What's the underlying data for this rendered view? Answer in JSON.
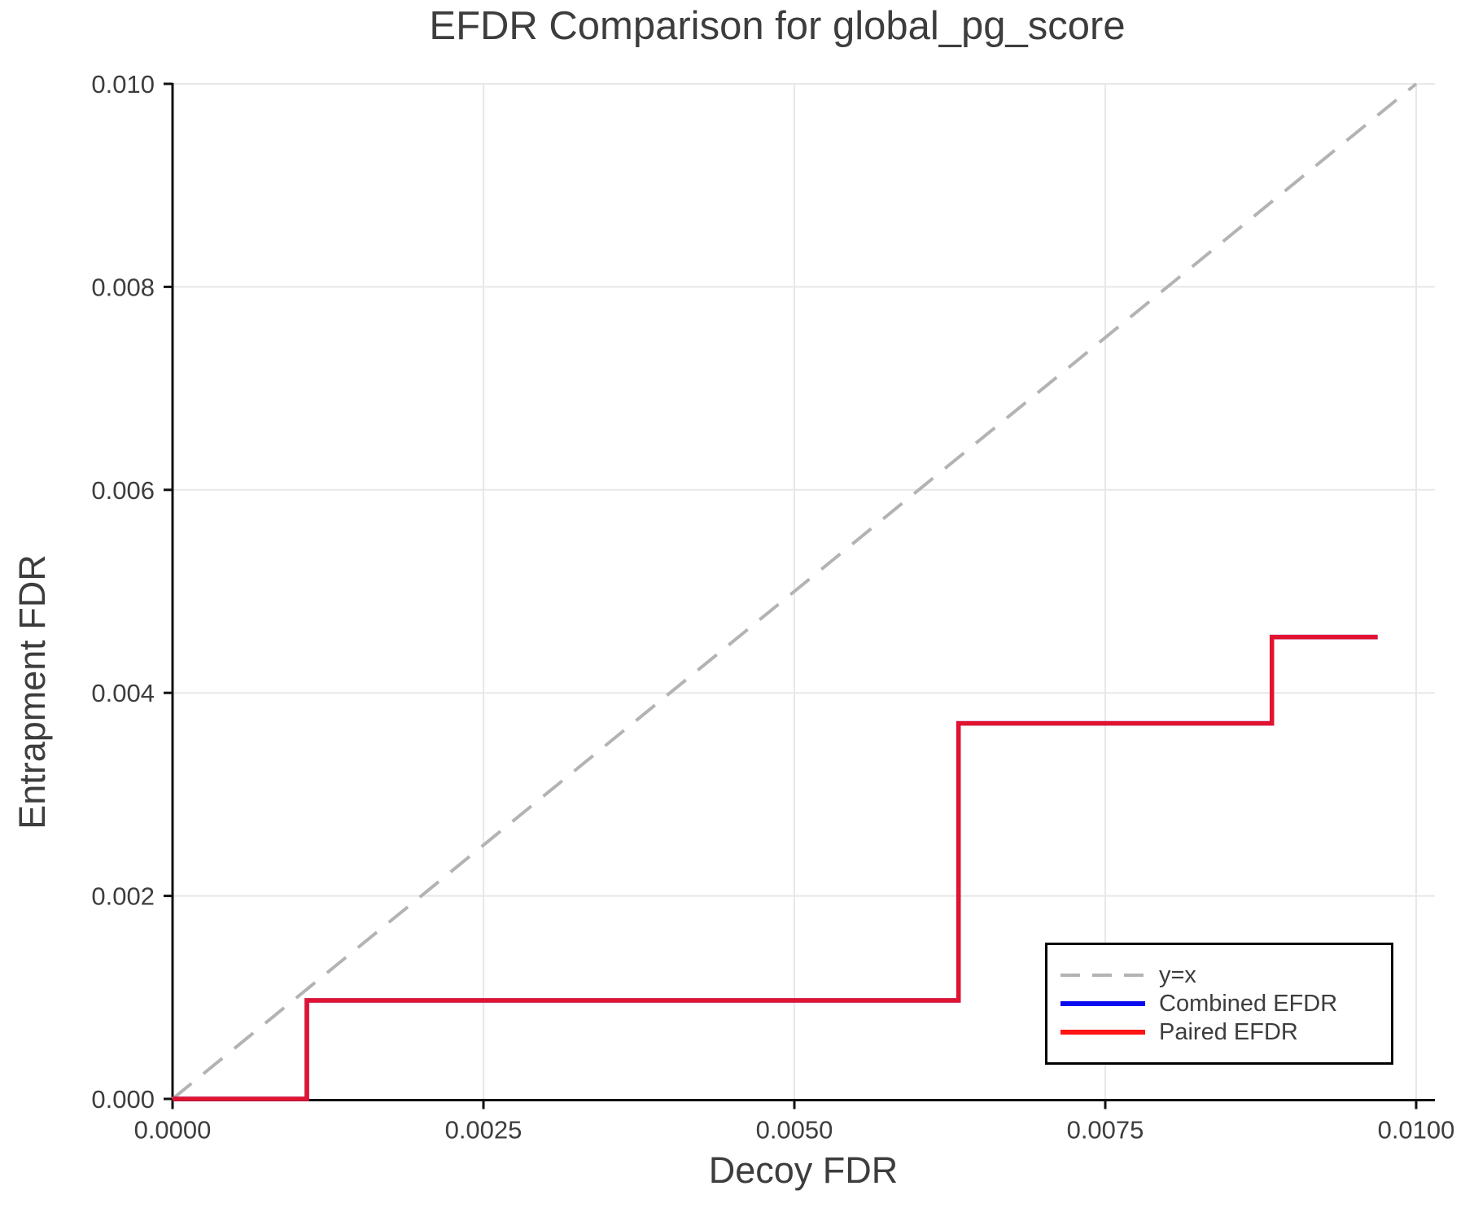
{
  "title": "EFDR Comparison for global_pg_score",
  "axes": {
    "xlabel": "Decoy FDR",
    "ylabel": "Entrapment FDR"
  },
  "legend": {
    "position": "lower right",
    "entries": [
      {
        "label": "y=x",
        "color": "#b3b3b3",
        "style": "dashed"
      },
      {
        "label": "Combined EFDR",
        "color": "#0a0af0",
        "style": "solid"
      },
      {
        "label": "Paired EFDR",
        "color": "#ff1414",
        "style": "solid"
      }
    ]
  },
  "colors": {
    "text": "#3d3d3d",
    "grid": "#e8e8e8",
    "spine": "#111111",
    "identity": "#b3b3b3",
    "combined": "#0a0af0",
    "paired": "#ff1414"
  },
  "chart_data": {
    "type": "line",
    "title": "EFDR Comparison for global_pg_score",
    "xlabel": "Decoy FDR",
    "ylabel": "Entrapment FDR",
    "xlim": [
      0.0,
      0.01
    ],
    "ylim": [
      0.0,
      0.01
    ],
    "grid": true,
    "legend_position": "lower right",
    "x_ticks": {
      "values": [
        0.0,
        0.0025,
        0.005,
        0.0075,
        0.01
      ],
      "labels": [
        "0.0000",
        "0.0025",
        "0.0050",
        "0.0075",
        "0.0100"
      ]
    },
    "y_ticks": {
      "values": [
        0.0,
        0.002,
        0.004,
        0.006,
        0.008,
        0.01
      ],
      "labels": [
        "0.000",
        "0.002",
        "0.004",
        "0.006",
        "0.008",
        "0.010"
      ]
    },
    "series": [
      {
        "id": "identity-line",
        "name": "y=x",
        "style": "dashed",
        "color": "#b3b3b3",
        "opacity": 1,
        "width": 4,
        "x": [
          0.0,
          0.01
        ],
        "y": [
          0.0,
          0.01
        ]
      },
      {
        "id": "combined-efdr-line",
        "name": "Combined EFDR",
        "style": "solid",
        "color": "#0a0af0",
        "opacity": 1,
        "width": 5.5,
        "x": [
          0.0,
          0.00108,
          0.00108,
          0.00632,
          0.00632,
          0.00884,
          0.00884,
          0.00969
        ],
        "y": [
          0.0,
          0.0,
          0.00097,
          0.00097,
          0.0037,
          0.0037,
          0.00455,
          0.00455
        ]
      },
      {
        "id": "paired-efdr-line",
        "name": "Paired EFDR",
        "style": "solid",
        "color": "#ff1414",
        "opacity": 0.88,
        "width": 5.5,
        "x": [
          0.0,
          0.00108,
          0.00108,
          0.00632,
          0.00632,
          0.00884,
          0.00884,
          0.00969
        ],
        "y": [
          0.0,
          0.0,
          0.00097,
          0.00097,
          0.0037,
          0.0037,
          0.00455,
          0.00455
        ]
      }
    ]
  }
}
